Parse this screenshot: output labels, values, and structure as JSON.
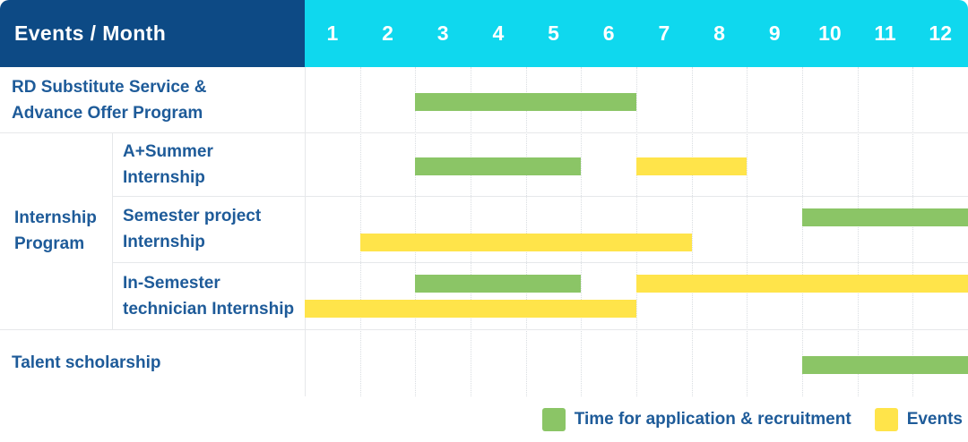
{
  "colors": {
    "navy": "#0d4a85",
    "cyan": "#0fd8ee",
    "green": "#8bc566",
    "yellow": "#ffe44a",
    "label_text": "#1e5b99",
    "header_text": "#ffffff"
  },
  "header": {
    "label": "Events / Month",
    "months": [
      "1",
      "2",
      "3",
      "4",
      "5",
      "6",
      "7",
      "8",
      "9",
      "10",
      "11",
      "12"
    ]
  },
  "legend": {
    "items": [
      {
        "label": "Time for application & recruitment",
        "series": "application"
      },
      {
        "label": "Events",
        "series": "events"
      }
    ]
  },
  "chart_data": {
    "type": "gantt",
    "title": "Events / Month",
    "x_axis": {
      "unit": "month",
      "ticks": [
        1,
        2,
        3,
        4,
        5,
        6,
        7,
        8,
        9,
        10,
        11,
        12
      ],
      "range": [
        1,
        12
      ]
    },
    "legend_position": "bottom-right",
    "grid": "dotted-monthly-columns",
    "series": [
      {
        "key": "application",
        "name": "Time for application & recruitment",
        "color": "#8bc566"
      },
      {
        "key": "events",
        "name": "Events",
        "color": "#ffe44a"
      }
    ],
    "group_label": "Internship Program",
    "group_label_lines": [
      "Internship",
      "Program"
    ],
    "rows": [
      {
        "group": "",
        "label": "RD Substitute Service & Advance Offer Program",
        "label_lines": [
          "RD Substitute Service &",
          "Advance Offer Program"
        ],
        "bars": [
          {
            "series": "application",
            "start_month": 3,
            "end_month": 6,
            "track": "middle"
          }
        ]
      },
      {
        "group": "Internship Program",
        "label": "A+Summer Internship",
        "label_lines": [
          "A+Summer",
          "Internship"
        ],
        "bars": [
          {
            "series": "application",
            "start_month": 3,
            "end_month": 5,
            "track": "middle"
          },
          {
            "series": "events",
            "start_month": 7,
            "end_month": 8,
            "track": "middle"
          }
        ]
      },
      {
        "group": "Internship Program",
        "label": "Semester project Internship",
        "label_lines": [
          "Semester project",
          "Internship"
        ],
        "bars": [
          {
            "series": "application",
            "start_month": 10,
            "end_month": 12,
            "track": "upper"
          },
          {
            "series": "events",
            "start_month": 2,
            "end_month": 7,
            "track": "lower"
          }
        ]
      },
      {
        "group": "Internship Program",
        "label": "In-Semester technician Internship",
        "label_lines": [
          "In-Semester",
          "technician Internship"
        ],
        "bars": [
          {
            "series": "application",
            "start_month": 3,
            "end_month": 5,
            "track": "upper"
          },
          {
            "series": "events",
            "start_month": 7,
            "end_month": 12,
            "track": "upper"
          },
          {
            "series": "events",
            "start_month": 1,
            "end_month": 6,
            "track": "lower"
          }
        ]
      },
      {
        "group": "",
        "label": "Talent scholarship",
        "label_lines": [
          "Talent scholarship"
        ],
        "bars": [
          {
            "series": "application",
            "start_month": 10,
            "end_month": 12,
            "track": "middle"
          }
        ]
      }
    ]
  }
}
